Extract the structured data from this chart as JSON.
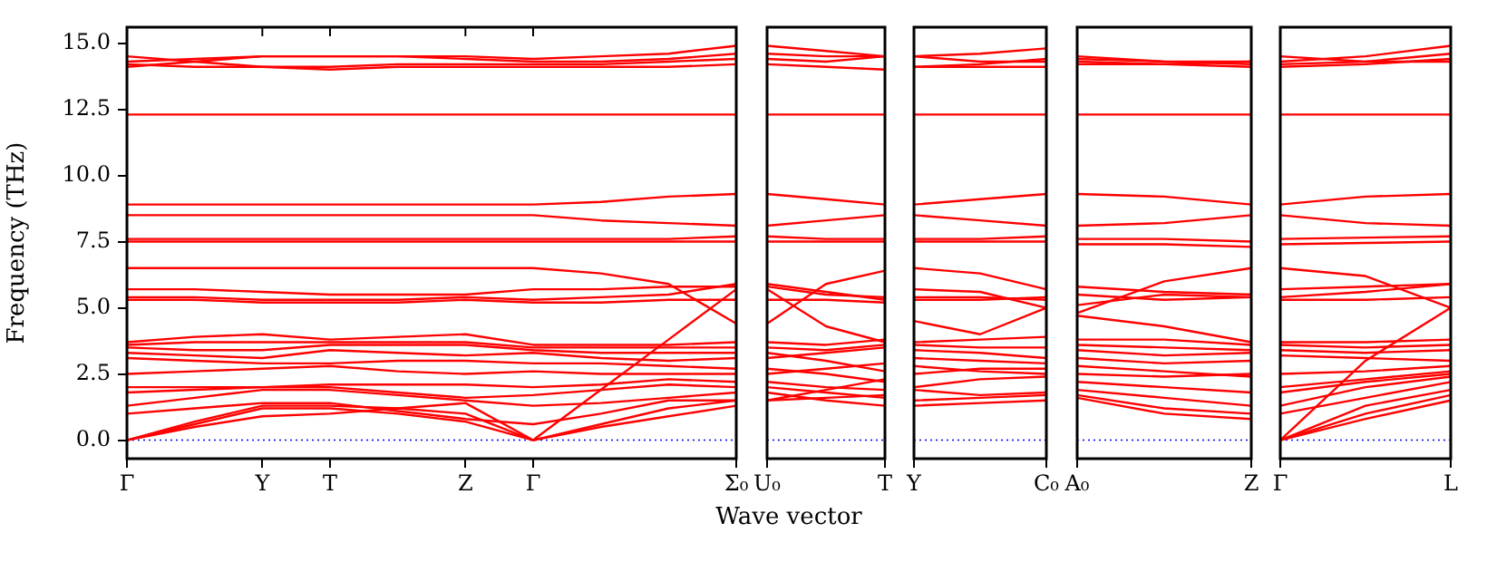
{
  "chart_data": [
    {
      "type": "line",
      "ylabel": "Frequency (THz)",
      "ylim": [
        -0.7,
        15.6
      ],
      "yticks": [
        {
          "value": 0,
          "label": "0.0"
        },
        {
          "value": 2.5,
          "label": "2.5"
        },
        {
          "value": 5,
          "label": "5.0"
        },
        {
          "value": 7.5,
          "label": "7.5"
        },
        {
          "value": 10,
          "label": "10.0"
        },
        {
          "value": 12.5,
          "label": "12.5"
        },
        {
          "value": 15,
          "label": "15.0"
        }
      ],
      "categories": [
        "Γ",
        null,
        "Y",
        "T",
        null,
        "Z",
        "Γ",
        null,
        null,
        "Σ₀"
      ],
      "grid": false,
      "legend": false,
      "ref_lines": [
        {
          "axis": "y",
          "value": 0,
          "color": "#0000ff",
          "line_style": "dotted"
        }
      ],
      "series": [
        {
          "color": "#ff0000",
          "values": [
            14.3,
            14.4,
            14.5,
            14.5,
            14.5,
            14.5,
            14.4,
            14.5,
            14.6,
            14.9
          ]
        },
        {
          "color": "#ff0000",
          "values": [
            14.1,
            14.3,
            14.5,
            14.5,
            14.5,
            14.4,
            14.3,
            14.3,
            14.4,
            14.6
          ]
        },
        {
          "color": "#ff0000",
          "values": [
            14.5,
            14.3,
            14.1,
            14.1,
            14.2,
            14.2,
            14.2,
            14.2,
            14.3,
            14.4
          ]
        },
        {
          "color": "#ff0000",
          "values": [
            14.2,
            14.1,
            14.1,
            14.0,
            14.1,
            14.1,
            14.1,
            14.1,
            14.1,
            14.2
          ]
        },
        {
          "color": "#ff0000",
          "values": [
            12.3,
            12.3,
            12.3,
            12.3,
            12.3,
            12.3,
            12.3,
            12.3,
            12.3,
            12.3
          ]
        },
        {
          "color": "#ff0000",
          "values": [
            8.9,
            8.9,
            8.9,
            8.9,
            8.9,
            8.9,
            8.9,
            9.0,
            9.2,
            9.3
          ]
        },
        {
          "color": "#ff0000",
          "values": [
            8.5,
            8.5,
            8.5,
            8.5,
            8.5,
            8.5,
            8.5,
            8.3,
            8.2,
            8.1
          ]
        },
        {
          "color": "#ff0000",
          "values": [
            7.6,
            7.6,
            7.6,
            7.6,
            7.6,
            7.6,
            7.6,
            7.6,
            7.6,
            7.7
          ]
        },
        {
          "color": "#ff0000",
          "values": [
            7.5,
            7.5,
            7.5,
            7.5,
            7.5,
            7.5,
            7.5,
            7.5,
            7.5,
            7.5
          ]
        },
        {
          "color": "#ff0000",
          "values": [
            6.5,
            6.5,
            6.5,
            6.5,
            6.5,
            6.5,
            6.5,
            6.3,
            5.9,
            4.4
          ]
        },
        {
          "color": "#ff0000",
          "values": [
            5.7,
            5.7,
            5.6,
            5.5,
            5.5,
            5.5,
            5.7,
            5.7,
            5.8,
            5.8
          ]
        },
        {
          "color": "#ff0000",
          "values": [
            5.4,
            5.4,
            5.3,
            5.3,
            5.3,
            5.4,
            5.3,
            5.4,
            5.5,
            5.9
          ]
        },
        {
          "color": "#ff0000",
          "values": [
            5.3,
            5.3,
            5.2,
            5.2,
            5.2,
            5.3,
            5.2,
            5.2,
            5.3,
            5.3
          ]
        },
        {
          "color": "#ff0000",
          "values": [
            3.7,
            3.9,
            4.0,
            3.8,
            3.9,
            4.0,
            3.6,
            3.6,
            3.6,
            3.7
          ]
        },
        {
          "color": "#ff0000",
          "values": [
            3.6,
            3.7,
            3.7,
            3.7,
            3.7,
            3.7,
            3.5,
            3.5,
            3.5,
            3.5
          ]
        },
        {
          "color": "#ff0000",
          "values": [
            3.5,
            3.4,
            3.4,
            3.6,
            3.6,
            3.6,
            3.4,
            3.3,
            3.3,
            3.3
          ]
        },
        {
          "color": "#ff0000",
          "values": [
            3.3,
            3.2,
            3.1,
            3.4,
            3.3,
            3.2,
            3.3,
            3.1,
            3.0,
            3.1
          ]
        },
        {
          "color": "#ff0000",
          "values": [
            3.1,
            3.0,
            2.9,
            2.9,
            3.0,
            3.0,
            2.9,
            2.9,
            2.8,
            2.7
          ]
        },
        {
          "color": "#ff0000",
          "values": [
            2.5,
            2.6,
            2.7,
            2.8,
            2.6,
            2.5,
            2.6,
            2.5,
            2.5,
            2.5
          ]
        },
        {
          "color": "#ff0000",
          "values": [
            2.0,
            2.0,
            2.0,
            2.1,
            2.1,
            2.1,
            2.0,
            2.1,
            2.3,
            2.2
          ]
        },
        {
          "color": "#ff0000",
          "values": [
            1.8,
            1.9,
            2.0,
            2.0,
            1.8,
            1.6,
            1.7,
            1.9,
            2.1,
            2.0
          ]
        },
        {
          "color": "#ff0000",
          "values": [
            1.3,
            1.6,
            1.9,
            1.9,
            1.7,
            1.5,
            1.3,
            1.4,
            1.6,
            1.8
          ]
        },
        {
          "color": "#ff0000",
          "values": [
            1.0,
            1.2,
            1.4,
            1.4,
            1.1,
            0.8,
            0.6,
            1.0,
            1.5,
            1.5
          ]
        },
        {
          "color": "#ff0000",
          "values": [
            0,
            0.7,
            1.3,
            1.3,
            1.2,
            1.0,
            0,
            0.6,
            1.2,
            1.5
          ]
        },
        {
          "color": "#ff0000",
          "values": [
            0,
            0.6,
            1.2,
            1.2,
            1.0,
            0.7,
            0,
            0.5,
            0.9,
            1.3
          ]
        },
        {
          "color": "#ff0000",
          "values": [
            0,
            0.5,
            0.9,
            1.0,
            1.2,
            1.4,
            0,
            1.9,
            3.8,
            5.7
          ]
        }
      ]
    },
    {
      "type": "line",
      "xlabel": "Wave vector",
      "ylim": [
        -0.7,
        15.6
      ],
      "tick_labels": "x",
      "categories": [
        "U₀",
        null,
        "T"
      ],
      "grid": false,
      "legend": false,
      "ref_lines": [
        {
          "axis": "y",
          "value": 0,
          "color": "#0000ff",
          "line_style": "dotted"
        }
      ],
      "series": [
        {
          "color": "#ff0000",
          "values": [
            14.9,
            14.7,
            14.5
          ]
        },
        {
          "color": "#ff0000",
          "values": [
            14.6,
            14.5,
            14.5
          ]
        },
        {
          "color": "#ff0000",
          "values": [
            14.4,
            14.3,
            14.5
          ]
        },
        {
          "color": "#ff0000",
          "values": [
            14.2,
            14.1,
            14.0
          ]
        },
        {
          "color": "#ff0000",
          "values": [
            12.3,
            12.3,
            12.3
          ]
        },
        {
          "color": "#ff0000",
          "values": [
            9.3,
            9.1,
            8.9
          ]
        },
        {
          "color": "#ff0000",
          "values": [
            8.1,
            8.3,
            8.5
          ]
        },
        {
          "color": "#ff0000",
          "values": [
            7.7,
            7.6,
            7.6
          ]
        },
        {
          "color": "#ff0000",
          "values": [
            7.5,
            7.5,
            7.5
          ]
        },
        {
          "color": "#ff0000",
          "values": [
            4.4,
            5.9,
            6.4
          ]
        },
        {
          "color": "#ff0000",
          "values": [
            5.8,
            5.5,
            5.4
          ]
        },
        {
          "color": "#ff0000",
          "values": [
            5.9,
            5.6,
            5.3
          ]
        },
        {
          "color": "#ff0000",
          "values": [
            5.3,
            5.3,
            5.2
          ]
        },
        {
          "color": "#ff0000",
          "values": [
            3.7,
            3.6,
            3.8
          ]
        },
        {
          "color": "#ff0000",
          "values": [
            3.5,
            3.4,
            3.6
          ]
        },
        {
          "color": "#ff0000",
          "values": [
            3.3,
            3.0,
            2.6
          ]
        },
        {
          "color": "#ff0000",
          "values": [
            3.1,
            3.3,
            3.5
          ]
        },
        {
          "color": "#ff0000",
          "values": [
            2.7,
            2.5,
            2.2
          ]
        },
        {
          "color": "#ff0000",
          "values": [
            2.5,
            2.7,
            2.9
          ]
        },
        {
          "color": "#ff0000",
          "values": [
            2.2,
            2.0,
            1.9
          ]
        },
        {
          "color": "#ff0000",
          "values": [
            2.0,
            1.8,
            1.6
          ]
        },
        {
          "color": "#ff0000",
          "values": [
            1.8,
            1.5,
            1.3
          ]
        },
        {
          "color": "#ff0000",
          "values": [
            1.5,
            1.6,
            1.7
          ]
        },
        {
          "color": "#ff0000",
          "values": [
            1.5,
            1.9,
            2.3
          ]
        },
        {
          "color": "#ff0000",
          "values": [
            5.7,
            4.3,
            3.7
          ]
        }
      ]
    },
    {
      "type": "line",
      "ylim": [
        -0.7,
        15.6
      ],
      "tick_labels": "x",
      "categories": [
        "Y",
        null,
        "C₀"
      ],
      "grid": false,
      "legend": false,
      "ref_lines": [
        {
          "axis": "y",
          "value": 0,
          "color": "#0000ff",
          "line_style": "dotted"
        }
      ],
      "series": [
        {
          "color": "#ff0000",
          "values": [
            14.5,
            14.6,
            14.8
          ]
        },
        {
          "color": "#ff0000",
          "values": [
            14.5,
            14.3,
            14.3
          ]
        },
        {
          "color": "#ff0000",
          "values": [
            14.1,
            14.2,
            14.4
          ]
        },
        {
          "color": "#ff0000",
          "values": [
            14.1,
            14.1,
            14.1
          ]
        },
        {
          "color": "#ff0000",
          "values": [
            12.3,
            12.3,
            12.3
          ]
        },
        {
          "color": "#ff0000",
          "values": [
            8.9,
            9.1,
            9.3
          ]
        },
        {
          "color": "#ff0000",
          "values": [
            8.5,
            8.3,
            8.1
          ]
        },
        {
          "color": "#ff0000",
          "values": [
            7.6,
            7.6,
            7.7
          ]
        },
        {
          "color": "#ff0000",
          "values": [
            7.5,
            7.5,
            7.5
          ]
        },
        {
          "color": "#ff0000",
          "values": [
            6.5,
            6.3,
            5.7
          ]
        },
        {
          "color": "#ff0000",
          "values": [
            5.7,
            5.6,
            5.0
          ]
        },
        {
          "color": "#ff0000",
          "values": [
            5.4,
            5.4,
            5.3
          ]
        },
        {
          "color": "#ff0000",
          "values": [
            5.3,
            5.3,
            5.4
          ]
        },
        {
          "color": "#ff0000",
          "values": [
            4.5,
            4.0,
            5.0
          ]
        },
        {
          "color": "#ff0000",
          "values": [
            3.7,
            3.8,
            3.9
          ]
        },
        {
          "color": "#ff0000",
          "values": [
            3.6,
            3.5,
            3.5
          ]
        },
        {
          "color": "#ff0000",
          "values": [
            3.4,
            3.3,
            3.1
          ]
        },
        {
          "color": "#ff0000",
          "values": [
            3.1,
            3.0,
            2.9
          ]
        },
        {
          "color": "#ff0000",
          "values": [
            2.8,
            2.6,
            2.5
          ]
        },
        {
          "color": "#ff0000",
          "values": [
            2.5,
            2.7,
            2.7
          ]
        },
        {
          "color": "#ff0000",
          "values": [
            2.0,
            2.3,
            2.4
          ]
        },
        {
          "color": "#ff0000",
          "values": [
            1.9,
            1.7,
            1.8
          ]
        },
        {
          "color": "#ff0000",
          "values": [
            1.5,
            1.6,
            1.7
          ]
        },
        {
          "color": "#ff0000",
          "values": [
            1.3,
            1.4,
            1.5
          ]
        }
      ]
    },
    {
      "type": "line",
      "ylim": [
        -0.7,
        15.6
      ],
      "tick_labels": "x",
      "categories": [
        "A₀",
        null,
        "Z"
      ],
      "grid": false,
      "legend": false,
      "ref_lines": [
        {
          "axis": "y",
          "value": 0,
          "color": "#0000ff",
          "line_style": "dotted"
        }
      ],
      "series": [
        {
          "color": "#ff0000",
          "values": [
            14.5,
            14.3,
            14.2
          ]
        },
        {
          "color": "#ff0000",
          "values": [
            14.4,
            14.3,
            14.3
          ]
        },
        {
          "color": "#ff0000",
          "values": [
            14.3,
            14.2,
            14.1
          ]
        },
        {
          "color": "#ff0000",
          "values": [
            14.2,
            14.2,
            14.3
          ]
        },
        {
          "color": "#ff0000",
          "values": [
            12.3,
            12.3,
            12.3
          ]
        },
        {
          "color": "#ff0000",
          "values": [
            9.3,
            9.2,
            8.9
          ]
        },
        {
          "color": "#ff0000",
          "values": [
            8.1,
            8.2,
            8.5
          ]
        },
        {
          "color": "#ff0000",
          "values": [
            7.6,
            7.6,
            7.5
          ]
        },
        {
          "color": "#ff0000",
          "values": [
            7.4,
            7.4,
            7.3
          ]
        },
        {
          "color": "#ff0000",
          "values": [
            4.8,
            6.0,
            6.5
          ]
        },
        {
          "color": "#ff0000",
          "values": [
            5.8,
            5.6,
            5.5
          ]
        },
        {
          "color": "#ff0000",
          "values": [
            5.5,
            5.3,
            5.4
          ]
        },
        {
          "color": "#ff0000",
          "values": [
            5.1,
            5.5,
            5.4
          ]
        },
        {
          "color": "#ff0000",
          "values": [
            4.7,
            4.3,
            3.7
          ]
        },
        {
          "color": "#ff0000",
          "values": [
            3.8,
            3.8,
            3.6
          ]
        },
        {
          "color": "#ff0000",
          "values": [
            3.6,
            3.5,
            3.4
          ]
        },
        {
          "color": "#ff0000",
          "values": [
            3.4,
            3.2,
            3.3
          ]
        },
        {
          "color": "#ff0000",
          "values": [
            3.1,
            2.9,
            3.0
          ]
        },
        {
          "color": "#ff0000",
          "values": [
            2.8,
            2.6,
            2.4
          ]
        },
        {
          "color": "#ff0000",
          "values": [
            2.5,
            2.4,
            2.5
          ]
        },
        {
          "color": "#ff0000",
          "values": [
            2.2,
            2.0,
            1.8
          ]
        },
        {
          "color": "#ff0000",
          "values": [
            1.9,
            1.6,
            1.3
          ]
        },
        {
          "color": "#ff0000",
          "values": [
            1.7,
            1.2,
            1.0
          ]
        },
        {
          "color": "#ff0000",
          "values": [
            1.6,
            1.0,
            0.8
          ]
        }
      ]
    },
    {
      "type": "line",
      "ylim": [
        -0.7,
        15.6
      ],
      "tick_labels": "x",
      "categories": [
        "Γ",
        null,
        "L"
      ],
      "grid": false,
      "legend": false,
      "ref_lines": [
        {
          "axis": "y",
          "value": 0,
          "color": "#0000ff",
          "line_style": "dotted"
        }
      ],
      "series": [
        {
          "color": "#ff0000",
          "values": [
            14.3,
            14.5,
            14.9
          ]
        },
        {
          "color": "#ff0000",
          "values": [
            14.2,
            14.3,
            14.6
          ]
        },
        {
          "color": "#ff0000",
          "values": [
            14.1,
            14.2,
            14.4
          ]
        },
        {
          "color": "#ff0000",
          "values": [
            14.5,
            14.3,
            14.3
          ]
        },
        {
          "color": "#ff0000",
          "values": [
            12.3,
            12.3,
            12.3
          ]
        },
        {
          "color": "#ff0000",
          "values": [
            8.9,
            9.2,
            9.3
          ]
        },
        {
          "color": "#ff0000",
          "values": [
            8.5,
            8.2,
            8.1
          ]
        },
        {
          "color": "#ff0000",
          "values": [
            7.6,
            7.65,
            7.7
          ]
        },
        {
          "color": "#ff0000",
          "values": [
            7.4,
            7.45,
            7.5
          ]
        },
        {
          "color": "#ff0000",
          "values": [
            6.5,
            6.2,
            5.0
          ]
        },
        {
          "color": "#ff0000",
          "values": [
            5.7,
            5.8,
            5.9
          ]
        },
        {
          "color": "#ff0000",
          "values": [
            5.4,
            5.6,
            5.9
          ]
        },
        {
          "color": "#ff0000",
          "values": [
            5.3,
            5.3,
            5.4
          ]
        },
        {
          "color": "#ff0000",
          "values": [
            0,
            3.0,
            5.0
          ]
        },
        {
          "color": "#ff0000",
          "values": [
            3.7,
            3.7,
            3.8
          ]
        },
        {
          "color": "#ff0000",
          "values": [
            3.6,
            3.5,
            3.6
          ]
        },
        {
          "color": "#ff0000",
          "values": [
            3.4,
            3.3,
            3.4
          ]
        },
        {
          "color": "#ff0000",
          "values": [
            3.2,
            3.1,
            3.0
          ]
        },
        {
          "color": "#ff0000",
          "values": [
            2.5,
            2.6,
            2.8
          ]
        },
        {
          "color": "#ff0000",
          "values": [
            2.0,
            2.3,
            2.6
          ]
        },
        {
          "color": "#ff0000",
          "values": [
            1.8,
            2.2,
            2.5
          ]
        },
        {
          "color": "#ff0000",
          "values": [
            1.3,
            2.0,
            2.4
          ]
        },
        {
          "color": "#ff0000",
          "values": [
            1.0,
            1.6,
            2.2
          ]
        },
        {
          "color": "#ff0000",
          "values": [
            0,
            1.3,
            1.9
          ]
        },
        {
          "color": "#ff0000",
          "values": [
            0,
            1.0,
            1.7
          ]
        },
        {
          "color": "#ff0000",
          "values": [
            0,
            0.8,
            1.5
          ]
        }
      ]
    }
  ]
}
